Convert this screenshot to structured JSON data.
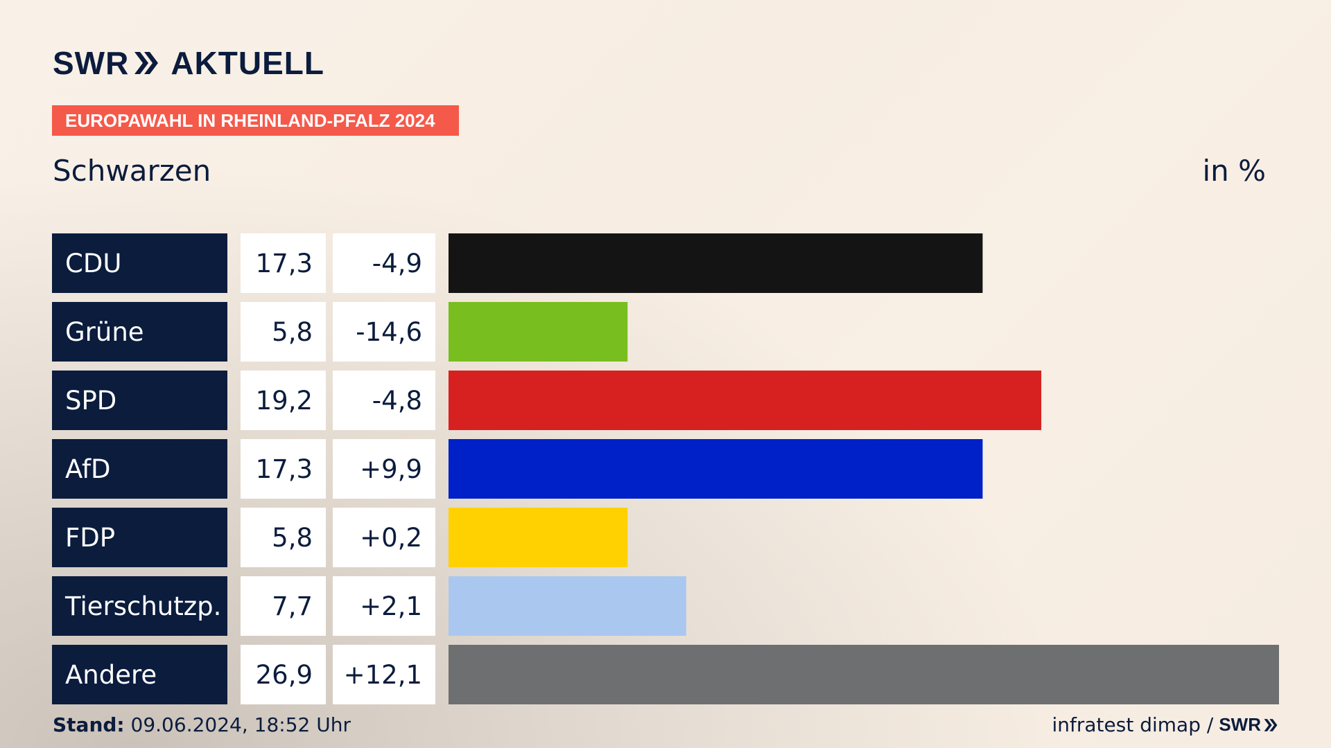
{
  "logo": {
    "brand": "SWR",
    "section": "AKTUELL"
  },
  "badge": "EUROPAWAHL IN RHEINLAND-PFALZ 2024",
  "subtitle": "Schwarzen",
  "unit": "in %",
  "footer": {
    "stand_label": "Stand:",
    "stand_value": "09.06.2024, 18:52 Uhr",
    "source": "infratest dimap /",
    "source_logo": "SWR"
  },
  "colors": {
    "label_bg": "#0b1c3d",
    "value_bg": "#ffffff",
    "badge": "#f5594a"
  },
  "chart_data": {
    "type": "bar",
    "categories": [
      "CDU",
      "Grüne",
      "SPD",
      "AfD",
      "FDP",
      "Tierschutzp.",
      "Andere"
    ],
    "values": [
      17.3,
      5.8,
      19.2,
      17.3,
      5.8,
      7.7,
      26.9
    ],
    "value_labels": [
      "17,3",
      "5,8",
      "19,2",
      "17,3",
      "5,8",
      "7,7",
      "26,9"
    ],
    "diff_labels": [
      "-4,9",
      "-14,6",
      "-4,8",
      "+9,9",
      "+0,2",
      "+2,1",
      "+12,1"
    ],
    "bar_colors": [
      "#141414",
      "#78be1e",
      "#d72020",
      "#0020c8",
      "#ffd100",
      "#aac8ef",
      "#6e6f71"
    ],
    "xlim": [
      0,
      26.9
    ]
  }
}
